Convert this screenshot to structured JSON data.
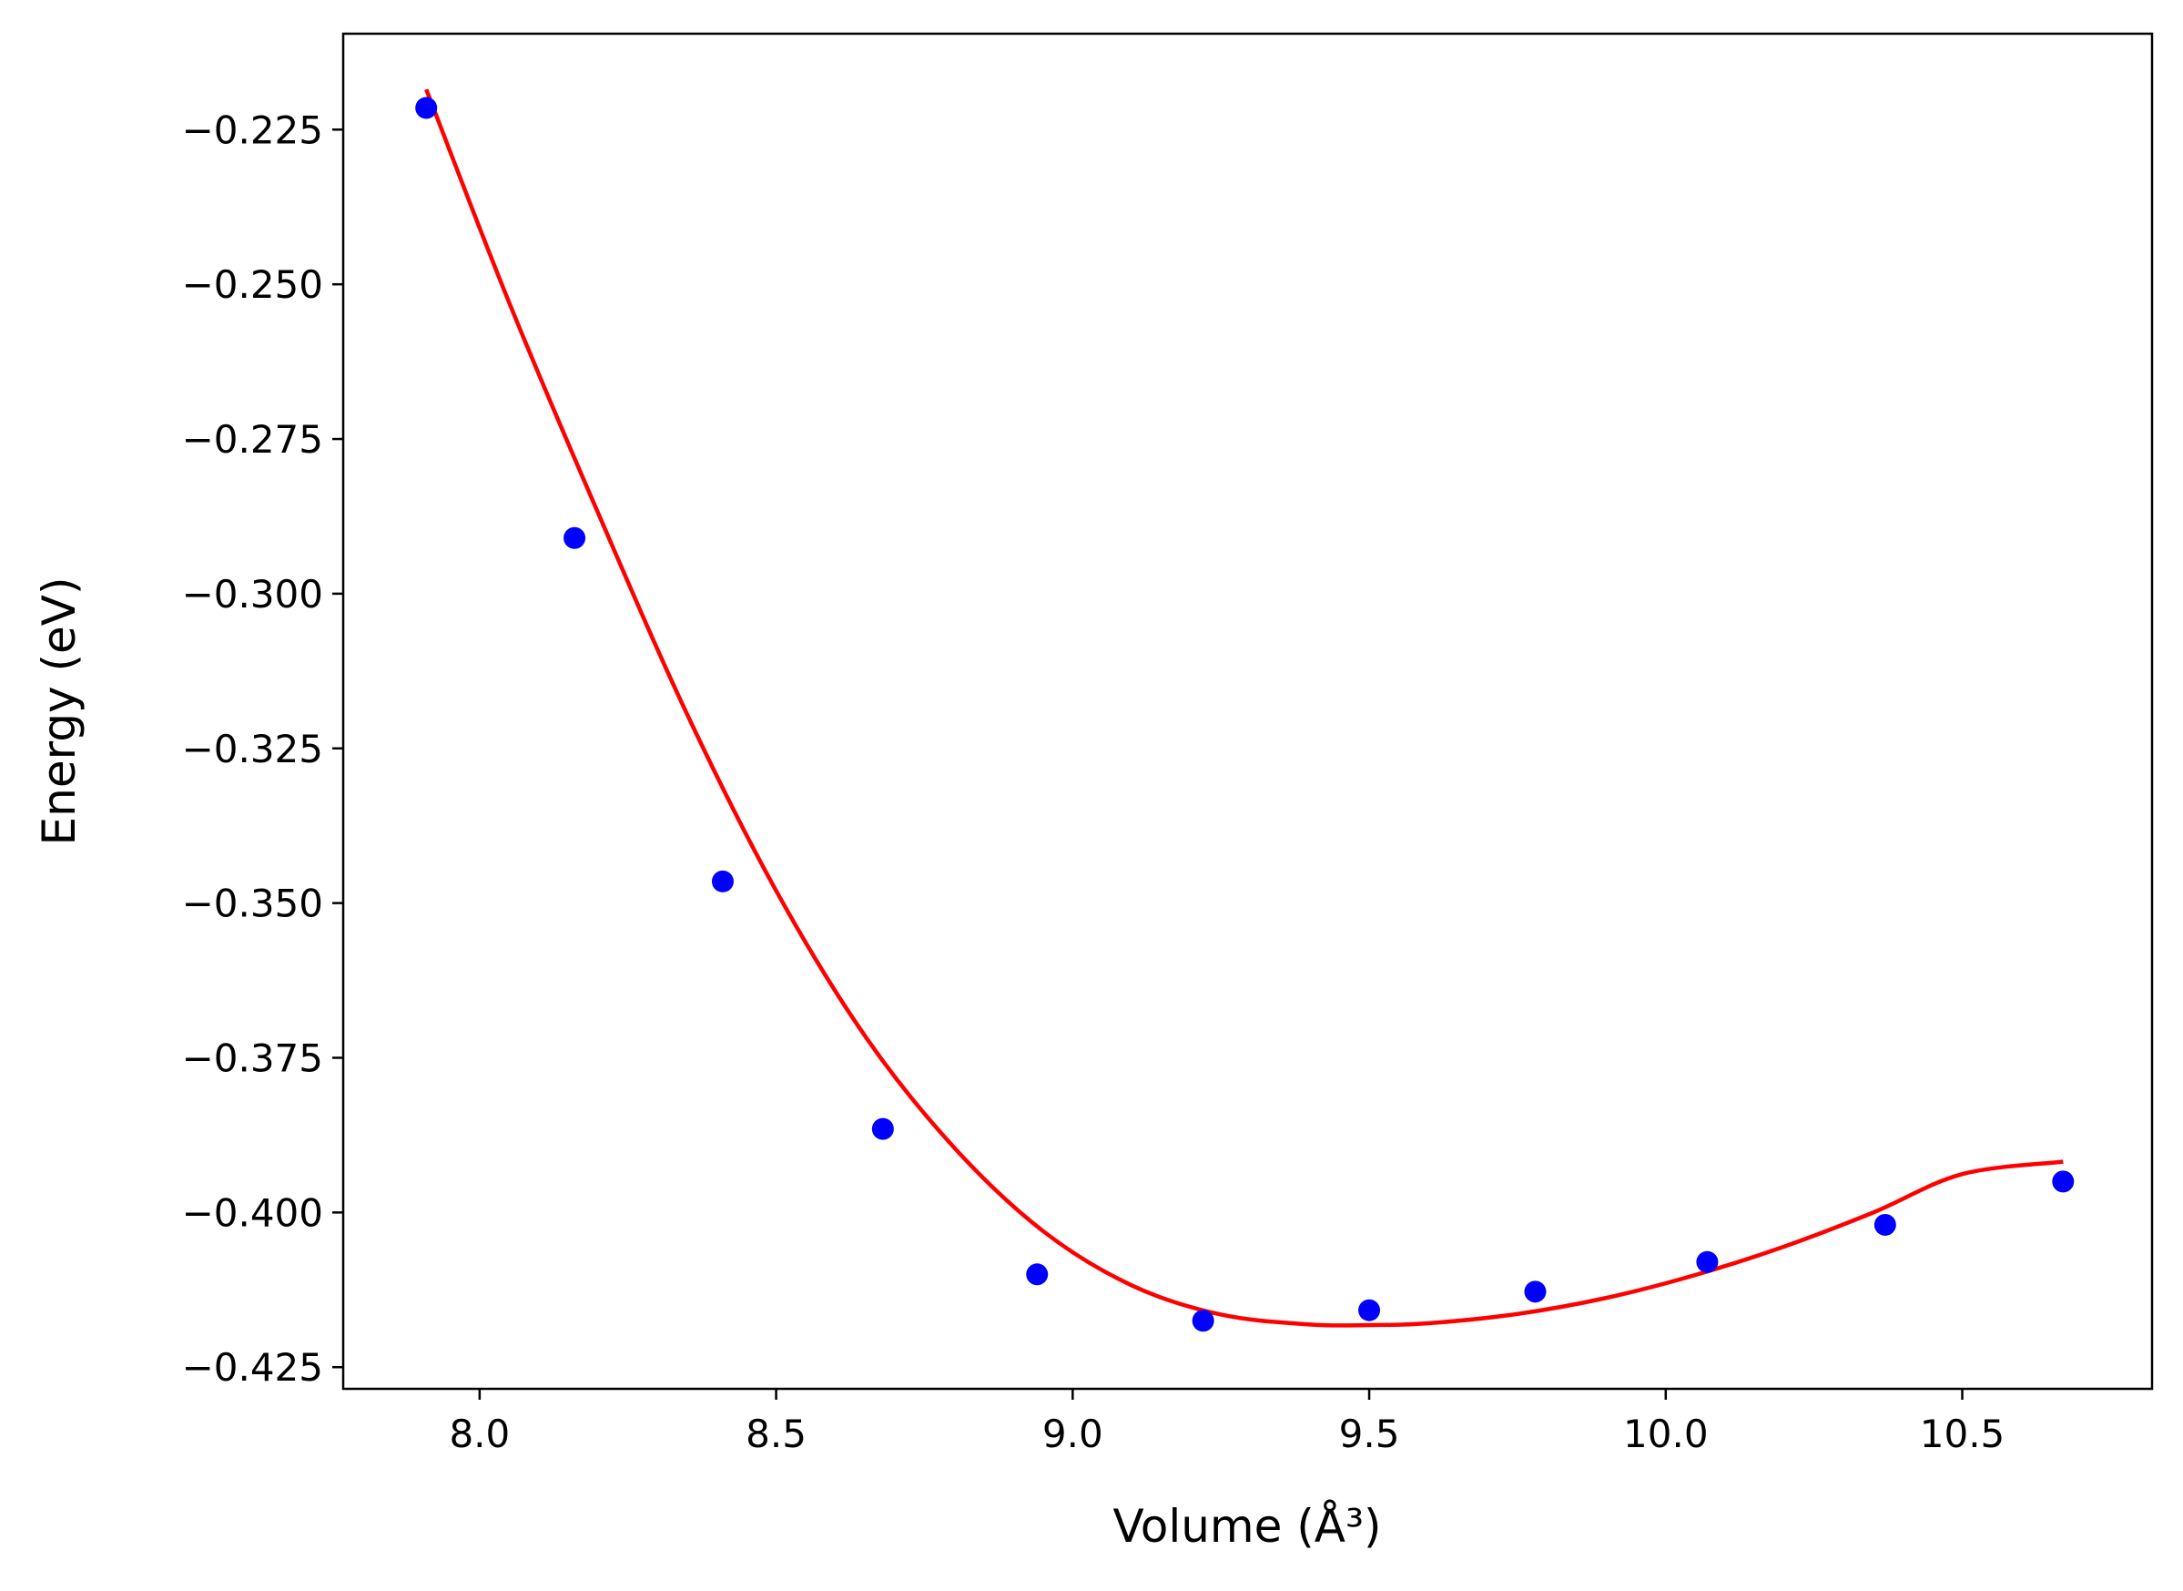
{
  "chart_data": {
    "type": "scatter",
    "xlabel": "Volume (Å³)",
    "ylabel": "Energy (eV)",
    "xlim": [
      7.77,
      10.82
    ],
    "ylim": [
      -0.4285,
      -0.2095
    ],
    "xticks": [
      8.0,
      8.5,
      9.0,
      9.5,
      10.0,
      10.5
    ],
    "xtick_labels": [
      "8.0",
      "8.5",
      "9.0",
      "9.5",
      "10.0",
      "10.5"
    ],
    "yticks": [
      -0.225,
      -0.25,
      -0.275,
      -0.3,
      -0.325,
      -0.35,
      -0.375,
      -0.4,
      -0.425
    ],
    "ytick_labels": [
      "−0.225",
      "−0.250",
      "−0.275",
      "−0.300",
      "−0.325",
      "−0.350",
      "−0.375",
      "−0.400",
      "−0.425"
    ],
    "grid": false,
    "series": [
      {
        "kind": "points",
        "color": "#0000ff",
        "x": [
          7.91,
          8.16,
          8.41,
          8.68,
          8.94,
          9.22,
          9.5,
          9.78,
          10.07,
          10.37,
          10.67
        ],
        "y": [
          -0.2215,
          -0.291,
          -0.3465,
          -0.3865,
          -0.41,
          -0.4175,
          -0.4158,
          -0.4128,
          -0.408,
          -0.402,
          -0.395
        ]
      },
      {
        "kind": "fit-line",
        "color": "#ff0000",
        "x": [
          7.91,
          8.05,
          8.2,
          8.35,
          8.5,
          8.65,
          8.8,
          8.95,
          9.1,
          9.25,
          9.4,
          9.5,
          9.6,
          9.75,
          9.9,
          10.05,
          10.2,
          10.35,
          10.5,
          10.67
        ],
        "y": [
          -0.2185,
          -0.253,
          -0.287,
          -0.3195,
          -0.348,
          -0.3715,
          -0.3895,
          -0.403,
          -0.4118,
          -0.4165,
          -0.4181,
          -0.4182,
          -0.4179,
          -0.4164,
          -0.4138,
          -0.4101,
          -0.4055,
          -0.4,
          -0.3938,
          -0.3918
        ]
      }
    ]
  }
}
